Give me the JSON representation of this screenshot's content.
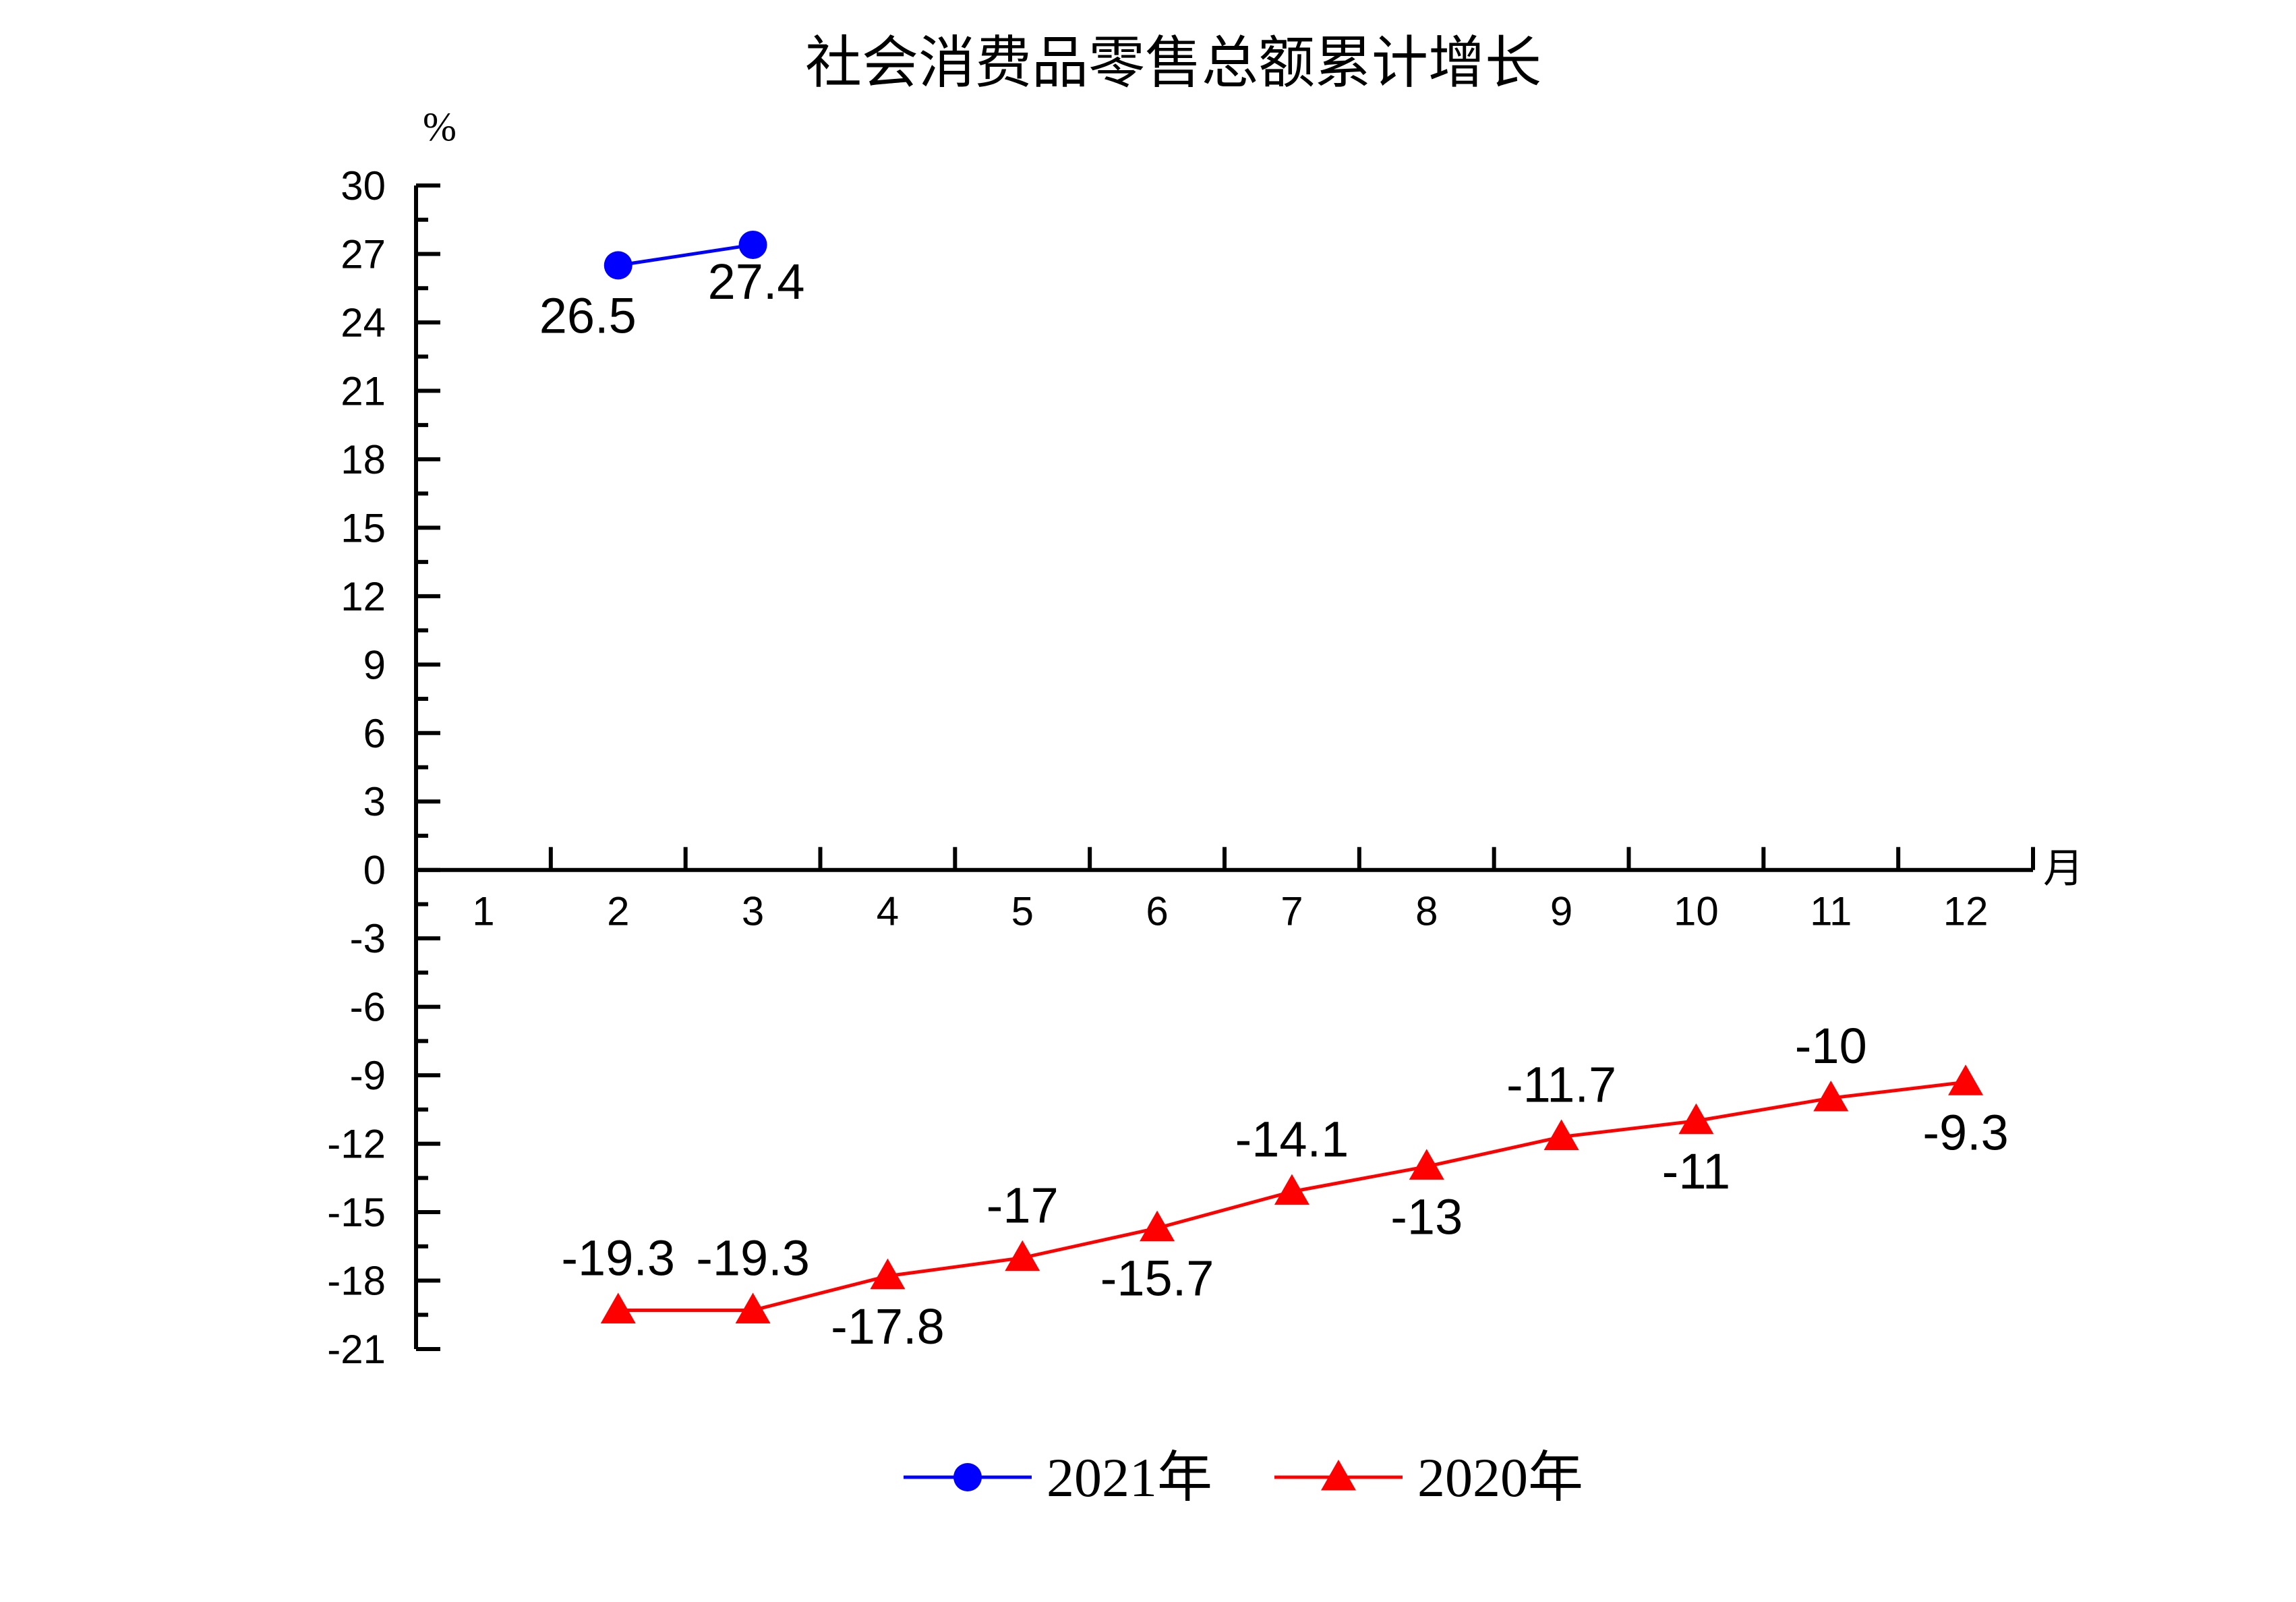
{
  "chart_data": {
    "type": "line",
    "title": "社会消费品零售总额累计增长",
    "ylabel": "%",
    "xlabel": "月",
    "ylim": [
      -21,
      30
    ],
    "y_ticks": [
      30,
      27,
      24,
      21,
      18,
      15,
      12,
      9,
      6,
      3,
      0,
      -3,
      -6,
      -9,
      -12,
      -15,
      -18,
      -21
    ],
    "xlim": [
      0.5,
      12.5
    ],
    "x_ticks": [
      1,
      2,
      3,
      4,
      5,
      6,
      7,
      8,
      9,
      10,
      11,
      12
    ],
    "x_tick_labels": [
      "1",
      "2",
      "3",
      "4",
      "5",
      "6",
      "7",
      "8",
      "9",
      "10",
      "11",
      "12"
    ],
    "grid": false,
    "legend_position": "bottom",
    "series": [
      {
        "name": "2021年",
        "color": "#0000ff",
        "marker": "circle",
        "x": [
          2,
          3
        ],
        "values": [
          26.5,
          27.4
        ],
        "labels": [
          "26.5",
          "27.4"
        ],
        "label_position": [
          "below",
          "below"
        ]
      },
      {
        "name": "2020年",
        "color": "#ff0000",
        "marker": "triangle",
        "x": [
          2,
          3,
          4,
          5,
          6,
          7,
          8,
          9,
          10,
          11,
          12
        ],
        "values": [
          -19.3,
          -19.3,
          -17.8,
          -17,
          -15.7,
          -14.1,
          -13,
          -11.7,
          -11,
          -10,
          -9.3
        ],
        "labels": [
          "-19.3",
          "-19.3",
          "-17.8",
          "-17",
          "-15.7",
          "-14.1",
          "-13",
          "-11.7",
          "-11",
          "-10",
          "-9.3"
        ],
        "label_position": [
          "above",
          "above",
          "below",
          "above",
          "below",
          "above",
          "below",
          "above",
          "below",
          "above",
          "below"
        ]
      }
    ]
  }
}
